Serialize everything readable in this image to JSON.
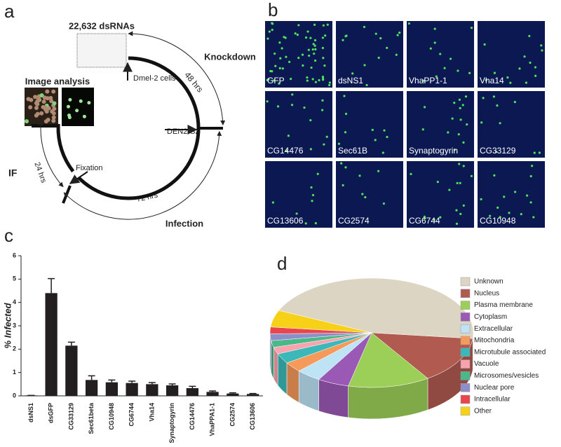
{
  "panel_labels": [
    "a",
    "b",
    "c",
    "d"
  ],
  "diagram": {
    "library": "22,632 dsRNAs",
    "cells": "Dmel-2 cells",
    "knockdown_time": "48 hrs",
    "knockdown": "Knockdown",
    "virus": "DEN2-S2",
    "image_analysis": "Image analysis",
    "if": "IF",
    "if_time": "24 hrs",
    "fixation": "Fixation",
    "infection_time": "72 hrs",
    "infection": "Infection"
  },
  "images": [
    "GFP",
    "dsNS1",
    "VhaPP1-1",
    "Vha14",
    "CG14476",
    "Sec61B",
    "Synaptogyrin",
    "CG33129",
    "CG13606",
    "CG2574",
    "CG6744",
    "CG10948"
  ],
  "chart_data": [
    {
      "type": "bar",
      "y_label": "% Infected",
      "categories": [
        "dsNS1",
        "dsGFP",
        "CG33129",
        "Sec61beta",
        "CG10948",
        "CG6744",
        "Vha14",
        "Synaptogyrin",
        "CG14476",
        "VhaPPA1-1",
        "CG2574",
        "CG13606"
      ],
      "values": [
        0.02,
        4.4,
        2.15,
        0.68,
        0.58,
        0.55,
        0.5,
        0.45,
        0.33,
        0.17,
        0.1,
        0.08
      ],
      "errors": [
        0,
        0.62,
        0.15,
        0.18,
        0.1,
        0.08,
        0.07,
        0.06,
        0.08,
        0.04,
        0.03,
        0.02
      ],
      "color": "#231f20",
      "ylim": [
        0,
        6
      ],
      "yticks": [
        0,
        1,
        2,
        3,
        4,
        5,
        6
      ]
    },
    {
      "type": "pie",
      "categories": [
        "Unknown",
        "Nucleus",
        "Plasma membrane",
        "Cytoplasm",
        "Extracellular",
        "Mitochondria",
        "Microtubule associated",
        "Vacuole",
        "Microsomes/vesicles",
        "Nuclear pore",
        "Intracellular",
        "Other"
      ],
      "values": [
        45,
        14,
        13,
        5,
        4,
        3,
        3,
        2,
        2,
        2,
        2,
        5
      ],
      "colors": [
        "#ddd5c4",
        "#b05a50",
        "#9ccf58",
        "#9b59b6",
        "#bde3f5",
        "#f59a5a",
        "#3cb8b8",
        "#f9a3ae",
        "#4bb88a",
        "#8e8ec8",
        "#e8464c",
        "#f7d117"
      ],
      "legend": "right"
    }
  ]
}
